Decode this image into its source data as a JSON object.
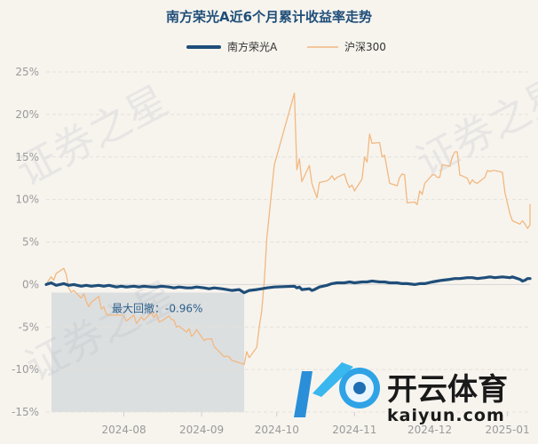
{
  "chart_data": {
    "type": "line",
    "title": "南方荣光A近6个月累计收益率走势",
    "xlabel": "",
    "ylabel": "",
    "ylim": [
      -15,
      25
    ],
    "yticks": [
      "25%",
      "20%",
      "15%",
      "10%",
      "5%",
      "0%",
      "-5%",
      "-10%",
      "-15%"
    ],
    "ytick_values": [
      25,
      20,
      15,
      10,
      5,
      0,
      -5,
      -10,
      -15
    ],
    "xticks": [
      {
        "label": "2024-08",
        "date": "2024-08-01"
      },
      {
        "label": "2024-09",
        "date": "2024-09-01"
      },
      {
        "label": "2024-10",
        "date": "2024-10-01"
      },
      {
        "label": "2024-11",
        "date": "2024-11-01"
      },
      {
        "label": "2024-12",
        "date": "2024-12-01"
      },
      {
        "label": "2025-01",
        "date": "2025-01-01"
      }
    ],
    "xlim": [
      "2024-07-01",
      "2025-01-10"
    ],
    "grid": "horizontal",
    "legend_position": "top-center",
    "series": [
      {
        "name": "南方荣光A",
        "color": "#1f4e79",
        "points": [
          [
            "2024-07-01",
            0.0
          ],
          [
            "2024-07-03",
            0.2
          ],
          [
            "2024-07-05",
            -0.1
          ],
          [
            "2024-07-08",
            0.1
          ],
          [
            "2024-07-10",
            -0.1
          ],
          [
            "2024-07-12",
            0.0
          ],
          [
            "2024-07-15",
            -0.2
          ],
          [
            "2024-07-17",
            -0.1
          ],
          [
            "2024-07-19",
            -0.2
          ],
          [
            "2024-07-22",
            -0.1
          ],
          [
            "2024-07-24",
            -0.2
          ],
          [
            "2024-07-26",
            -0.1
          ],
          [
            "2024-07-29",
            -0.3
          ],
          [
            "2024-07-31",
            -0.2
          ],
          [
            "2024-08-02",
            -0.3
          ],
          [
            "2024-08-05",
            -0.2
          ],
          [
            "2024-08-07",
            -0.3
          ],
          [
            "2024-08-09",
            -0.2
          ],
          [
            "2024-08-12",
            -0.3
          ],
          [
            "2024-08-14",
            -0.3
          ],
          [
            "2024-08-16",
            -0.2
          ],
          [
            "2024-08-19",
            -0.3
          ],
          [
            "2024-08-21",
            -0.4
          ],
          [
            "2024-08-23",
            -0.3
          ],
          [
            "2024-08-26",
            -0.4
          ],
          [
            "2024-08-28",
            -0.4
          ],
          [
            "2024-08-30",
            -0.3
          ],
          [
            "2024-09-02",
            -0.4
          ],
          [
            "2024-09-04",
            -0.5
          ],
          [
            "2024-09-06",
            -0.4
          ],
          [
            "2024-09-09",
            -0.5
          ],
          [
            "2024-09-11",
            -0.6
          ],
          [
            "2024-09-13",
            -0.7
          ],
          [
            "2024-09-16",
            -0.6
          ],
          [
            "2024-09-18",
            -0.96
          ],
          [
            "2024-09-20",
            -0.7
          ],
          [
            "2024-09-23",
            -0.6
          ],
          [
            "2024-09-25",
            -0.5
          ],
          [
            "2024-09-27",
            -0.4
          ],
          [
            "2024-09-30",
            -0.3
          ],
          [
            "2024-10-08",
            -0.2
          ],
          [
            "2024-10-09",
            -0.4
          ],
          [
            "2024-10-10",
            -0.3
          ],
          [
            "2024-10-11",
            -0.6
          ],
          [
            "2024-10-14",
            -0.5
          ],
          [
            "2024-10-15",
            -0.7
          ],
          [
            "2024-10-16",
            -0.6
          ],
          [
            "2024-10-18",
            -0.3
          ],
          [
            "2024-10-21",
            -0.1
          ],
          [
            "2024-10-23",
            0.1
          ],
          [
            "2024-10-25",
            0.2
          ],
          [
            "2024-10-28",
            0.2
          ],
          [
            "2024-10-30",
            0.3
          ],
          [
            "2024-11-01",
            0.2
          ],
          [
            "2024-11-04",
            0.3
          ],
          [
            "2024-11-06",
            0.3
          ],
          [
            "2024-11-08",
            0.4
          ],
          [
            "2024-11-11",
            0.3
          ],
          [
            "2024-11-13",
            0.3
          ],
          [
            "2024-11-15",
            0.2
          ],
          [
            "2024-11-18",
            0.2
          ],
          [
            "2024-11-20",
            0.1
          ],
          [
            "2024-11-22",
            0.1
          ],
          [
            "2024-11-25",
            0.0
          ],
          [
            "2024-11-27",
            0.1
          ],
          [
            "2024-11-29",
            0.1
          ],
          [
            "2024-12-02",
            0.3
          ],
          [
            "2024-12-04",
            0.4
          ],
          [
            "2024-12-06",
            0.5
          ],
          [
            "2024-12-09",
            0.6
          ],
          [
            "2024-12-11",
            0.7
          ],
          [
            "2024-12-13",
            0.7
          ],
          [
            "2024-12-16",
            0.8
          ],
          [
            "2024-12-18",
            0.8
          ],
          [
            "2024-12-20",
            0.7
          ],
          [
            "2024-12-23",
            0.8
          ],
          [
            "2024-12-25",
            0.9
          ],
          [
            "2024-12-27",
            0.8
          ],
          [
            "2024-12-30",
            0.9
          ],
          [
            "2025-01-02",
            0.8
          ],
          [
            "2025-01-03",
            0.9
          ],
          [
            "2025-01-06",
            0.6
          ],
          [
            "2025-01-07",
            0.4
          ],
          [
            "2025-01-08",
            0.5
          ],
          [
            "2025-01-09",
            0.7
          ],
          [
            "2025-01-10",
            0.7
          ]
        ]
      },
      {
        "name": "沪深300",
        "color": "#f2b880",
        "points": [
          [
            "2024-07-01",
            0.0
          ],
          [
            "2024-07-02",
            0.5
          ],
          [
            "2024-07-03",
            0.9
          ],
          [
            "2024-07-04",
            0.5
          ],
          [
            "2024-07-05",
            1.3
          ],
          [
            "2024-07-08",
            1.9
          ],
          [
            "2024-07-09",
            1.2
          ],
          [
            "2024-07-10",
            -0.4
          ],
          [
            "2024-07-11",
            -0.9
          ],
          [
            "2024-07-12",
            -0.7
          ],
          [
            "2024-07-15",
            -1.6
          ],
          [
            "2024-07-16",
            -1.1
          ],
          [
            "2024-07-17",
            -2.0
          ],
          [
            "2024-07-18",
            -2.6
          ],
          [
            "2024-07-19",
            -2.1
          ],
          [
            "2024-07-22",
            -1.4
          ],
          [
            "2024-07-23",
            -2.9
          ],
          [
            "2024-07-24",
            -2.6
          ],
          [
            "2024-07-25",
            -3.5
          ],
          [
            "2024-07-26",
            -3.6
          ],
          [
            "2024-07-29",
            -3.6
          ],
          [
            "2024-07-30",
            -3.6
          ],
          [
            "2024-07-31",
            -3.6
          ],
          [
            "2024-08-01",
            -3.7
          ],
          [
            "2024-08-02",
            -4.3
          ],
          [
            "2024-08-05",
            -3.6
          ],
          [
            "2024-08-06",
            -4.6
          ],
          [
            "2024-08-07",
            -4.2
          ],
          [
            "2024-08-08",
            -3.8
          ],
          [
            "2024-08-09",
            -4.2
          ],
          [
            "2024-08-12",
            -3.3
          ],
          [
            "2024-08-13",
            -3.9
          ],
          [
            "2024-08-14",
            -3.4
          ],
          [
            "2024-08-15",
            -4.4
          ],
          [
            "2024-08-16",
            -4.3
          ],
          [
            "2024-08-19",
            -3.7
          ],
          [
            "2024-08-20",
            -4.1
          ],
          [
            "2024-08-21",
            -4.2
          ],
          [
            "2024-08-22",
            -5.0
          ],
          [
            "2024-08-23",
            -4.9
          ],
          [
            "2024-08-26",
            -5.6
          ],
          [
            "2024-08-27",
            -5.2
          ],
          [
            "2024-08-28",
            -6.1
          ],
          [
            "2024-08-29",
            -5.8
          ],
          [
            "2024-08-30",
            -5.3
          ],
          [
            "2024-09-02",
            -6.6
          ],
          [
            "2024-09-03",
            -6.4
          ],
          [
            "2024-09-04",
            -6.4
          ],
          [
            "2024-09-05",
            -6.4
          ],
          [
            "2024-09-06",
            -7.3
          ],
          [
            "2024-09-09",
            -8.2
          ],
          [
            "2024-09-10",
            -8.5
          ],
          [
            "2024-09-11",
            -8.4
          ],
          [
            "2024-09-12",
            -8.5
          ],
          [
            "2024-09-13",
            -8.9
          ],
          [
            "2024-09-18",
            -9.4
          ],
          [
            "2024-09-19",
            -7.9
          ],
          [
            "2024-09-20",
            -8.6
          ],
          [
            "2024-09-23",
            -7.4
          ],
          [
            "2024-09-24",
            -5.0
          ],
          [
            "2024-09-25",
            -3.1
          ],
          [
            "2024-09-26",
            0.4
          ],
          [
            "2024-09-27",
            5.4
          ],
          [
            "2024-09-30",
            14.1
          ],
          [
            "2024-10-08",
            22.5
          ],
          [
            "2024-10-09",
            13.5
          ],
          [
            "2024-10-10",
            14.8
          ],
          [
            "2024-10-11",
            12.1
          ],
          [
            "2024-10-14",
            14.0
          ],
          [
            "2024-10-15",
            11.9
          ],
          [
            "2024-10-16",
            11.0
          ],
          [
            "2024-10-17",
            10.2
          ],
          [
            "2024-10-18",
            12.0
          ],
          [
            "2024-10-21",
            12.2
          ],
          [
            "2024-10-22",
            12.4
          ],
          [
            "2024-10-23",
            12.8
          ],
          [
            "2024-10-24",
            12.3
          ],
          [
            "2024-10-25",
            12.6
          ],
          [
            "2024-10-28",
            13.0
          ],
          [
            "2024-10-29",
            12.0
          ],
          [
            "2024-10-30",
            11.4
          ],
          [
            "2024-10-31",
            11.7
          ],
          [
            "2024-11-01",
            11.0
          ],
          [
            "2024-11-04",
            12.4
          ],
          [
            "2024-11-05",
            15.0
          ],
          [
            "2024-11-06",
            14.4
          ],
          [
            "2024-11-07",
            17.7
          ],
          [
            "2024-11-08",
            16.6
          ],
          [
            "2024-11-11",
            16.7
          ],
          [
            "2024-11-12",
            15.0
          ],
          [
            "2024-11-13",
            15.2
          ],
          [
            "2024-11-14",
            13.6
          ],
          [
            "2024-11-15",
            11.9
          ],
          [
            "2024-11-18",
            11.6
          ],
          [
            "2024-11-19",
            12.6
          ],
          [
            "2024-11-20",
            13.0
          ],
          [
            "2024-11-21",
            12.9
          ],
          [
            "2024-11-22",
            9.6
          ],
          [
            "2024-11-25",
            9.7
          ],
          [
            "2024-11-26",
            9.4
          ],
          [
            "2024-11-27",
            11.0
          ],
          [
            "2024-11-28",
            10.6
          ],
          [
            "2024-11-29",
            11.9
          ],
          [
            "2024-12-02",
            12.9
          ],
          [
            "2024-12-03",
            12.9
          ],
          [
            "2024-12-04",
            12.6
          ],
          [
            "2024-12-05",
            12.6
          ],
          [
            "2024-12-06",
            14.1
          ],
          [
            "2024-12-09",
            13.9
          ],
          [
            "2024-12-10",
            15.0
          ],
          [
            "2024-12-11",
            15.6
          ],
          [
            "2024-12-12",
            15.6
          ],
          [
            "2024-12-13",
            12.9
          ],
          [
            "2024-12-16",
            12.5
          ],
          [
            "2024-12-17",
            11.8
          ],
          [
            "2024-12-18",
            12.3
          ],
          [
            "2024-12-19",
            12.0
          ],
          [
            "2024-12-20",
            11.9
          ],
          [
            "2024-12-23",
            12.6
          ],
          [
            "2024-12-24",
            13.4
          ],
          [
            "2024-12-25",
            13.3
          ],
          [
            "2024-12-26",
            13.4
          ],
          [
            "2024-12-27",
            13.4
          ],
          [
            "2024-12-30",
            13.2
          ],
          [
            "2024-12-31",
            10.8
          ],
          [
            "2025-01-02",
            8.3
          ],
          [
            "2025-01-03",
            7.5
          ],
          [
            "2025-01-06",
            7.1
          ],
          [
            "2025-01-07",
            7.5
          ],
          [
            "2025-01-08",
            7.1
          ],
          [
            "2025-01-09",
            6.6
          ],
          [
            "2025-01-10",
            7.0
          ],
          [
            "2025-01-10",
            9.4
          ]
        ]
      }
    ],
    "annotations": [
      {
        "type": "shaded_region",
        "label": "最大回撤：-0.96%",
        "x_start": "2024-07-01",
        "x_end": "2024-09-18",
        "y_start": -0.96,
        "y_end": -15,
        "color": "#a9b8c6"
      }
    ]
  },
  "watermark": {
    "text": "证券之星",
    "logo_cn": "开云体育",
    "logo_url": "kaiyun.com"
  }
}
